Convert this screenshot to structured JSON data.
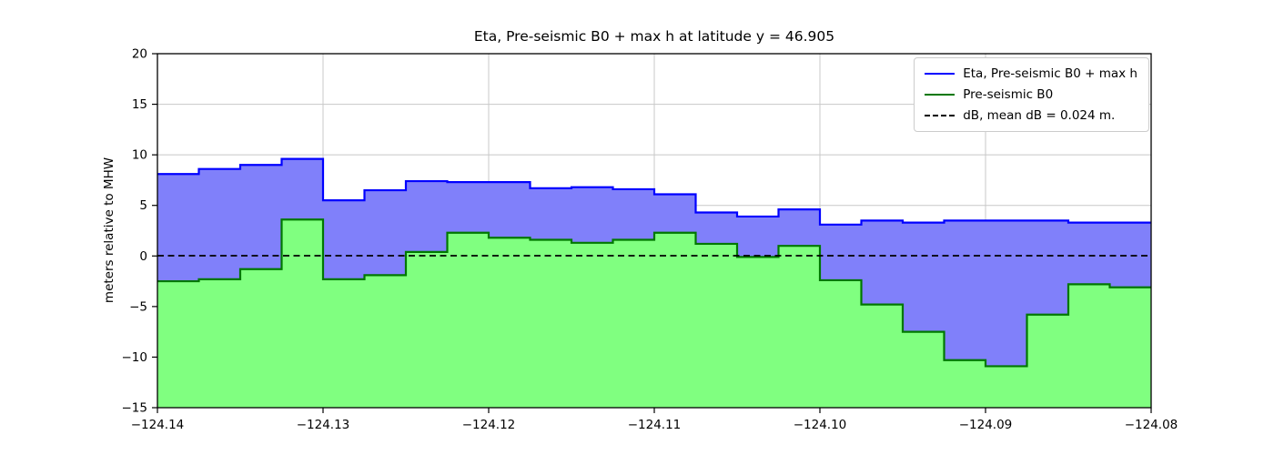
{
  "chart_data": {
    "type": "area",
    "title": "Eta, Pre-seismic B0 + max h at latitude y = 46.905",
    "xlabel": "",
    "ylabel": "meters relative to MHW",
    "xlim": [
      -124.14,
      -124.08
    ],
    "ylim": [
      -15,
      20
    ],
    "grid": true,
    "grid_color": "#c8c8c8",
    "background_color": "#ffffff",
    "legend_position": "upper right",
    "x_tick_values": [
      -124.14,
      -124.13,
      -124.12,
      -124.11,
      -124.1,
      -124.09,
      -124.08
    ],
    "x_tick_labels": [
      "−124.14",
      "−124.13",
      "−124.12",
      "−124.11",
      "−124.10",
      "−124.09",
      "−124.08"
    ],
    "y_tick_values": [
      -15,
      -10,
      -5,
      0,
      5,
      10,
      15,
      20
    ],
    "y_tick_labels": [
      "−15",
      "−10",
      "−5",
      "0",
      "5",
      "10",
      "15",
      "20"
    ],
    "x_edges": [
      -124.14,
      -124.1375,
      -124.135,
      -124.1325,
      -124.13,
      -124.1275,
      -124.125,
      -124.1225,
      -124.12,
      -124.1175,
      -124.115,
      -124.1125,
      -124.11,
      -124.1075,
      -124.105,
      -124.1025,
      -124.1,
      -124.0975,
      -124.095,
      -124.0925,
      -124.09,
      -124.0875,
      -124.085,
      -124.0825,
      -124.08
    ],
    "series": [
      {
        "name": "Eta, Pre-seismic B0 + max h",
        "color": "#0000ff",
        "fill": "#8080fa",
        "values": [
          8.1,
          8.6,
          9.0,
          9.6,
          5.5,
          6.5,
          7.4,
          7.3,
          7.3,
          6.7,
          6.8,
          6.6,
          6.1,
          4.3,
          3.9,
          4.6,
          3.1,
          3.5,
          3.3,
          3.5,
          3.5,
          3.5,
          3.3,
          3.3
        ]
      },
      {
        "name": "Pre-seismic B0",
        "color": "#007800",
        "fill": "#80ff80",
        "values": [
          -2.5,
          -2.3,
          -1.3,
          3.6,
          -2.3,
          -1.9,
          0.4,
          2.3,
          1.8,
          1.6,
          1.3,
          1.6,
          2.3,
          1.2,
          -0.1,
          1.0,
          -2.4,
          -4.8,
          -7.5,
          -10.3,
          -10.9,
          -5.8,
          -2.8,
          -3.1
        ]
      }
    ],
    "dB_line": {
      "name": "dB, mean dB = 0.024 m.",
      "value": 0.024,
      "color": "#000000",
      "style": "dashed"
    }
  }
}
